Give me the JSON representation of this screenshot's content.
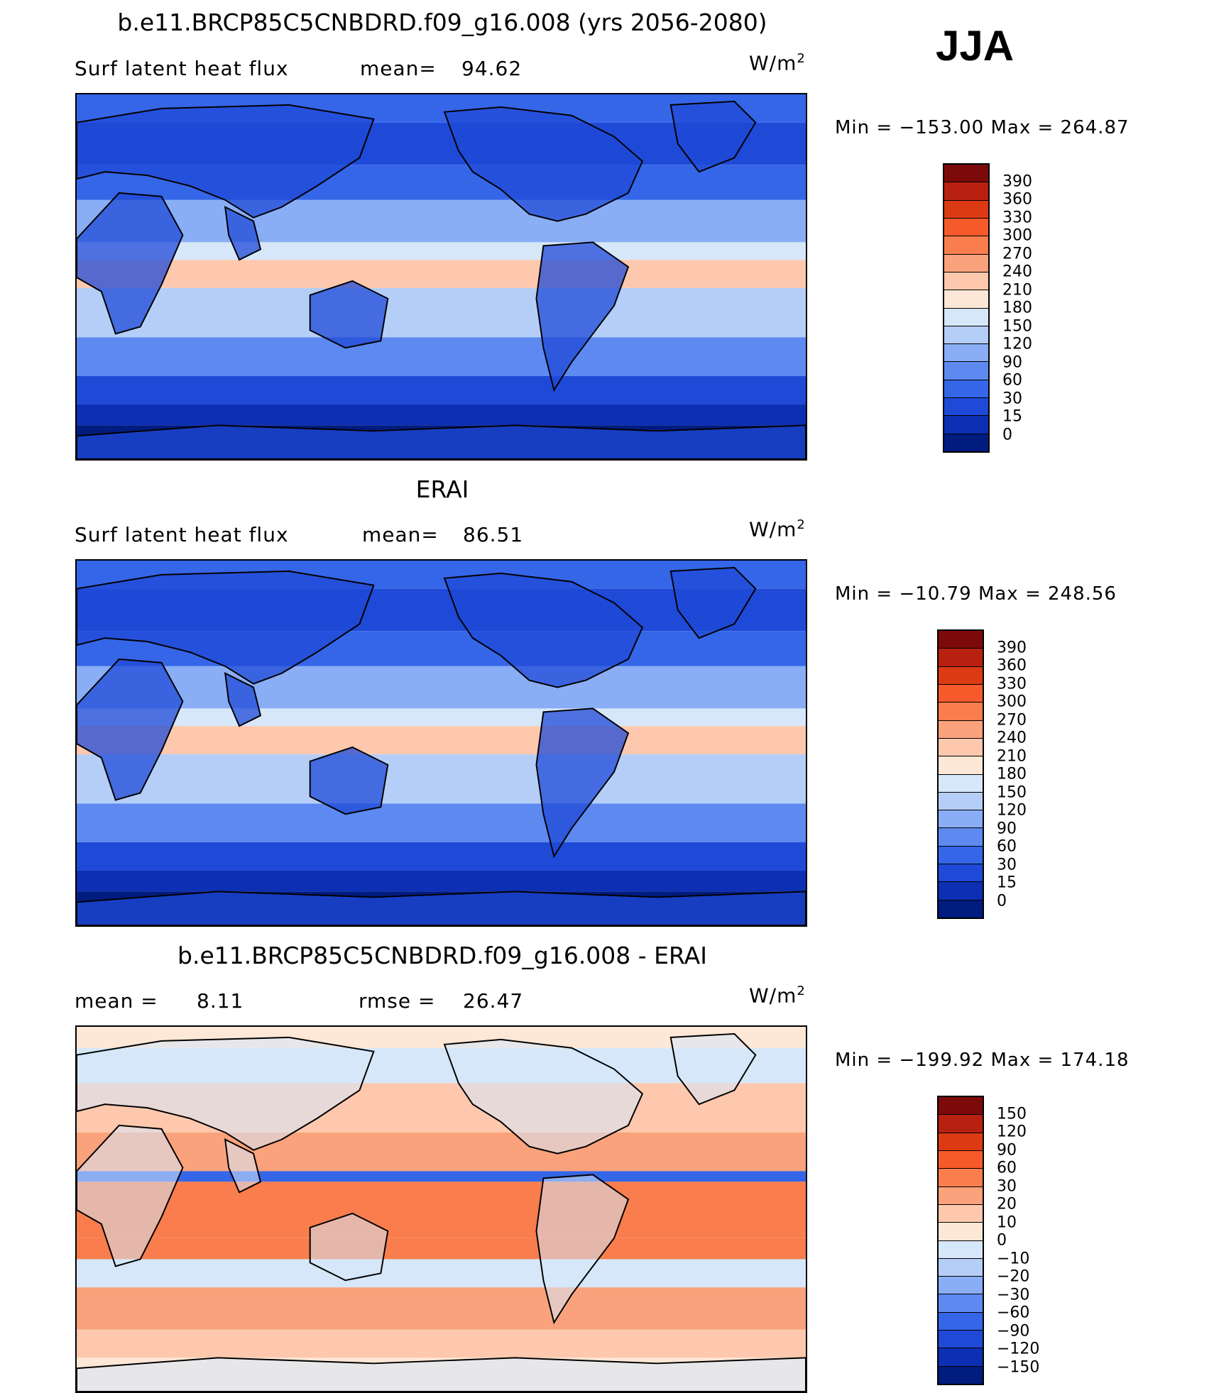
{
  "season": "JJA",
  "panels": [
    {
      "title": "b.e11.BRCP85C5CNBDRD.f09_g16.008 (yrs 2056-2080)",
      "left_label": "Surf latent heat flux",
      "stat_label": "mean=",
      "stat_value": "94.62",
      "units_base": "W/m",
      "units_sup": "2",
      "min_label": "Min = −153.00",
      "max_label": "Max = 264.87",
      "min_value": -153.0,
      "max_value": 264.87,
      "colorbar_labels": [
        "390",
        "360",
        "330",
        "300",
        "270",
        "240",
        "210",
        "180",
        "150",
        "120",
        "90",
        "60",
        "30",
        "15",
        "0"
      ],
      "colorbar_colors": [
        "#7d0a0a",
        "#b82010",
        "#dc3a12",
        "#f75a2a",
        "#f97d4d",
        "#faa27b",
        "#fdc8ad",
        "#fde7d6",
        "#d6e7f9",
        "#b5cef7",
        "#8aaef5",
        "#5d89f0",
        "#3566e8",
        "#1f49d7",
        "#0d2fb3",
        "#001c7f"
      ]
    },
    {
      "title": "ERAI",
      "left_label": "Surf latent heat flux",
      "stat_label": "mean=",
      "stat_value": "86.51",
      "units_base": "W/m",
      "units_sup": "2",
      "min_label": "Min = −10.79",
      "max_label": "Max = 248.56",
      "min_value": -10.79,
      "max_value": 248.56,
      "colorbar_labels": [
        "390",
        "360",
        "330",
        "300",
        "270",
        "240",
        "210",
        "180",
        "150",
        "120",
        "90",
        "60",
        "30",
        "15",
        "0"
      ],
      "colorbar_colors": [
        "#7d0a0a",
        "#b82010",
        "#dc3a12",
        "#f75a2a",
        "#f97d4d",
        "#faa27b",
        "#fdc8ad",
        "#fde7d6",
        "#d6e7f9",
        "#b5cef7",
        "#8aaef5",
        "#5d89f0",
        "#3566e8",
        "#1f49d7",
        "#0d2fb3",
        "#001c7f"
      ]
    },
    {
      "title": "b.e11.BRCP85C5CNBDRD.f09_g16.008 - ERAI",
      "left_label": "mean =",
      "left_value": "8.11",
      "stat_label": "rmse =",
      "stat_value": "26.47",
      "units_base": "W/m",
      "units_sup": "2",
      "min_label": "Min = −199.92",
      "max_label": "Max = 174.18",
      "min_value": -199.92,
      "max_value": 174.18,
      "colorbar_labels": [
        "150",
        "120",
        "90",
        "60",
        "30",
        "20",
        "10",
        "0",
        "−10",
        "−20",
        "−30",
        "−60",
        "−90",
        "−120",
        "−150"
      ],
      "colorbar_colors": [
        "#7d0a0a",
        "#b82010",
        "#dc3a12",
        "#f75a2a",
        "#f97d4d",
        "#faa27b",
        "#fdc8ad",
        "#fde7d6",
        "#d6e7f9",
        "#b5cef7",
        "#8aaef5",
        "#5d89f0",
        "#3566e8",
        "#1f49d7",
        "#0d2fb3",
        "#001c7f"
      ]
    }
  ],
  "chart_data": [
    {
      "type": "heatmap",
      "title": "b.e11.BRCP85C5CNBDRD.f09_g16.008 (yrs 2056-2080)",
      "variable": "Surf latent heat flux",
      "units": "W/m2",
      "mean": 94.62,
      "min": -153.0,
      "max": 264.87,
      "contour_levels": [
        0,
        15,
        30,
        60,
        90,
        120,
        150,
        180,
        210,
        240,
        270,
        300,
        330,
        360,
        390
      ]
    },
    {
      "type": "heatmap",
      "title": "ERAI",
      "variable": "Surf latent heat flux",
      "units": "W/m2",
      "mean": 86.51,
      "min": -10.79,
      "max": 248.56,
      "contour_levels": [
        0,
        15,
        30,
        60,
        90,
        120,
        150,
        180,
        210,
        240,
        270,
        300,
        330,
        360,
        390
      ]
    },
    {
      "type": "heatmap",
      "title": "b.e11.BRCP85C5CNBDRD.f09_g16.008 - ERAI",
      "units": "W/m2",
      "mean": 8.11,
      "rmse": 26.47,
      "min": -199.92,
      "max": 174.18,
      "contour_levels": [
        -150,
        -120,
        -90,
        -60,
        -30,
        -20,
        -10,
        0,
        10,
        20,
        30,
        60,
        90,
        120,
        150
      ]
    }
  ]
}
